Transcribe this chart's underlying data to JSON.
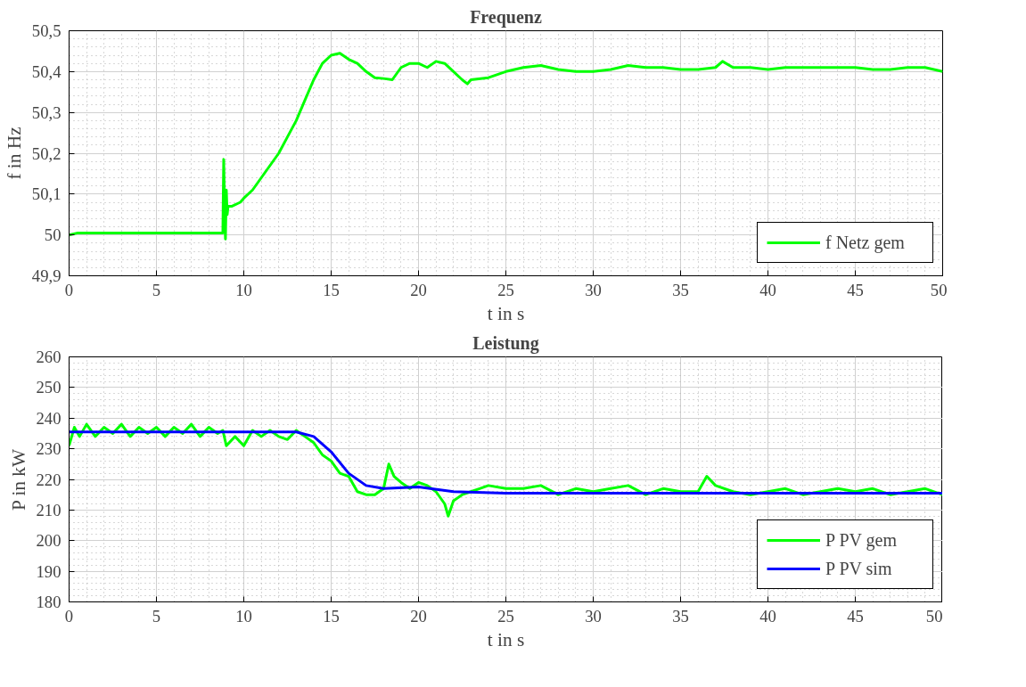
{
  "chart_data": [
    {
      "type": "line",
      "title": "Frequenz",
      "xlabel": "t in s",
      "ylabel": "f in Hz",
      "xlim": [
        0,
        50
      ],
      "xticks": [
        0,
        5,
        10,
        15,
        20,
        25,
        30,
        35,
        40,
        45,
        50
      ],
      "ylim": [
        49.9,
        50.5
      ],
      "yticks": [
        {
          "value": 49.9,
          "label": "49,9"
        },
        50,
        {
          "value": 50.1,
          "label": "50,1"
        },
        {
          "value": 50.2,
          "label": "50,2"
        },
        {
          "value": 50.3,
          "label": "50,3"
        },
        {
          "value": 50.4,
          "label": "50,4"
        },
        {
          "value": 50.5,
          "label": "50,5"
        }
      ],
      "grid": true,
      "legend": "bottom right",
      "series": [
        {
          "name": "f Netz gem",
          "color": "#00ff00",
          "x": [
            0,
            0.5,
            1,
            2,
            3,
            4,
            5,
            6,
            7,
            8,
            8.8,
            8.85,
            8.9,
            8.95,
            9.0,
            9.05,
            9.1,
            9.3,
            9.8,
            10,
            10.5,
            11,
            11.5,
            12,
            12.5,
            13,
            13.5,
            14,
            14.5,
            15,
            15.5,
            16,
            16.5,
            17,
            17.5,
            18,
            18.5,
            19,
            19.5,
            20,
            20.5,
            21,
            21.5,
            22,
            22.5,
            22.8,
            23,
            24,
            25,
            26,
            27,
            28,
            29,
            30,
            31,
            32,
            33,
            34,
            35,
            36,
            37,
            37.4,
            38,
            39,
            40,
            41,
            42,
            43,
            44,
            45,
            46,
            47,
            48,
            49,
            50
          ],
          "values": [
            50.0,
            50.005,
            50.005,
            50.005,
            50.005,
            50.005,
            50.005,
            50.005,
            50.005,
            50.005,
            50.005,
            50.185,
            50.06,
            49.99,
            50.11,
            50.05,
            50.07,
            50.07,
            50.08,
            50.09,
            50.11,
            50.14,
            50.17,
            50.2,
            50.24,
            50.28,
            50.33,
            50.38,
            50.42,
            50.44,
            50.445,
            50.43,
            50.42,
            50.4,
            50.385,
            50.383,
            50.38,
            50.41,
            50.42,
            50.42,
            50.41,
            50.425,
            50.42,
            50.4,
            50.38,
            50.37,
            50.38,
            50.385,
            50.4,
            50.41,
            50.415,
            50.405,
            50.4,
            50.4,
            50.405,
            50.415,
            50.41,
            50.41,
            50.405,
            50.405,
            50.41,
            50.425,
            50.41,
            50.41,
            50.405,
            50.41,
            50.41,
            50.41,
            50.41,
            50.41,
            50.405,
            50.405,
            50.41,
            50.41,
            50.4
          ]
        }
      ]
    },
    {
      "type": "line",
      "title": "Leistung",
      "xlabel": "t in s",
      "ylabel": "P in kW",
      "xlim": [
        0,
        50
      ],
      "xticks": [
        0,
        5,
        10,
        15,
        20,
        25,
        30,
        35,
        40,
        45,
        50
      ],
      "ylim": [
        180,
        260
      ],
      "yticks": [
        180,
        190,
        200,
        210,
        220,
        230,
        240,
        250,
        260
      ],
      "grid": true,
      "legend": "bottom right",
      "series": [
        {
          "name": "P PV gem",
          "color": "#00ff00",
          "x": [
            0,
            0.3,
            0.6,
            1,
            1.5,
            2,
            2.5,
            3,
            3.5,
            4,
            4.5,
            5,
            5.5,
            6,
            6.5,
            7,
            7.5,
            8,
            8.5,
            8.8,
            9,
            9.5,
            10,
            10.5,
            11,
            11.5,
            12,
            12.5,
            13,
            13.5,
            14,
            14.5,
            15,
            15.5,
            16,
            16.5,
            17,
            17.5,
            18,
            18.3,
            18.6,
            19,
            19.5,
            20,
            20.5,
            21,
            21.5,
            21.7,
            22,
            22.5,
            23,
            23.5,
            24,
            25,
            26,
            27,
            28,
            29,
            30,
            31,
            32,
            33,
            34,
            35,
            36,
            36.5,
            37,
            38,
            39,
            40,
            41,
            42,
            43,
            44,
            45,
            46,
            47,
            48,
            49,
            50
          ],
          "values": [
            231,
            237,
            234,
            238,
            234,
            237,
            235,
            238,
            234,
            237,
            235,
            237,
            234,
            237,
            235,
            238,
            234,
            237,
            235,
            236,
            231,
            234,
            231,
            236,
            234,
            236,
            234,
            233,
            236,
            234,
            232,
            228,
            226,
            222,
            221,
            216,
            215,
            215,
            217,
            225,
            221,
            219,
            217,
            219,
            218,
            216,
            212,
            208,
            213,
            215,
            216,
            217,
            218,
            217,
            217,
            218,
            215,
            217,
            216,
            217,
            218,
            215,
            217,
            216,
            216,
            221,
            218,
            216,
            215,
            216,
            217,
            215,
            216,
            217,
            216,
            217,
            215,
            216,
            217,
            215
          ]
        },
        {
          "name": "P PV sim",
          "color": "#0000ff",
          "x": [
            0,
            13,
            14,
            15,
            16,
            17,
            18,
            20,
            22,
            25,
            30,
            50
          ],
          "values": [
            235.5,
            235.5,
            234,
            229,
            222,
            218,
            217,
            217.5,
            216,
            215.5,
            215.5,
            215.5
          ]
        }
      ]
    }
  ]
}
